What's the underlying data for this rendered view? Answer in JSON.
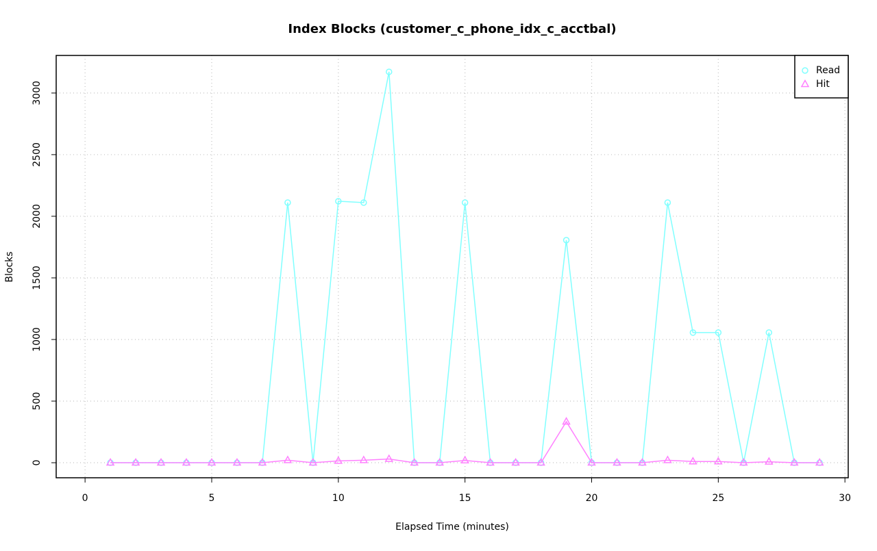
{
  "chart_data": {
    "type": "line",
    "title": "Index Blocks (customer_c_phone_idx_c_acctbal)",
    "x_label": "Elapsed Time (minutes)",
    "y_label": "Blocks",
    "x": [
      1,
      2,
      3,
      4,
      5,
      6,
      7,
      8,
      9,
      10,
      11,
      12,
      13,
      14,
      15,
      16,
      17,
      18,
      19,
      20,
      21,
      22,
      23,
      24,
      25,
      26,
      27,
      28,
      29
    ],
    "series": [
      {
        "name": "Read",
        "color": "#80ffff",
        "marker": "circle",
        "values": [
          0,
          0,
          0,
          0,
          0,
          0,
          0,
          2111,
          0,
          2122,
          2111,
          3172,
          0,
          0,
          2111,
          0,
          0,
          0,
          1806,
          0,
          0,
          0,
          2111,
          1056,
          1056,
          0,
          1056,
          0,
          0
        ]
      },
      {
        "name": "Hit",
        "color": "#ff80ff",
        "marker": "triangle",
        "values": [
          0,
          0,
          0,
          0,
          0,
          0,
          0,
          20,
          0,
          15,
          20,
          30,
          0,
          0,
          18,
          0,
          0,
          0,
          333,
          0,
          0,
          0,
          20,
          10,
          10,
          0,
          8,
          0,
          0
        ]
      }
    ],
    "xlim": [
      -1.14,
      30.13
    ],
    "ylim": [
      -122,
      3305
    ],
    "xticks": [
      0,
      5,
      10,
      15,
      20,
      25,
      30
    ],
    "yticks": [
      0,
      500,
      1000,
      1500,
      2000,
      2500,
      3000
    ],
    "grid": true,
    "legend": "topright"
  }
}
